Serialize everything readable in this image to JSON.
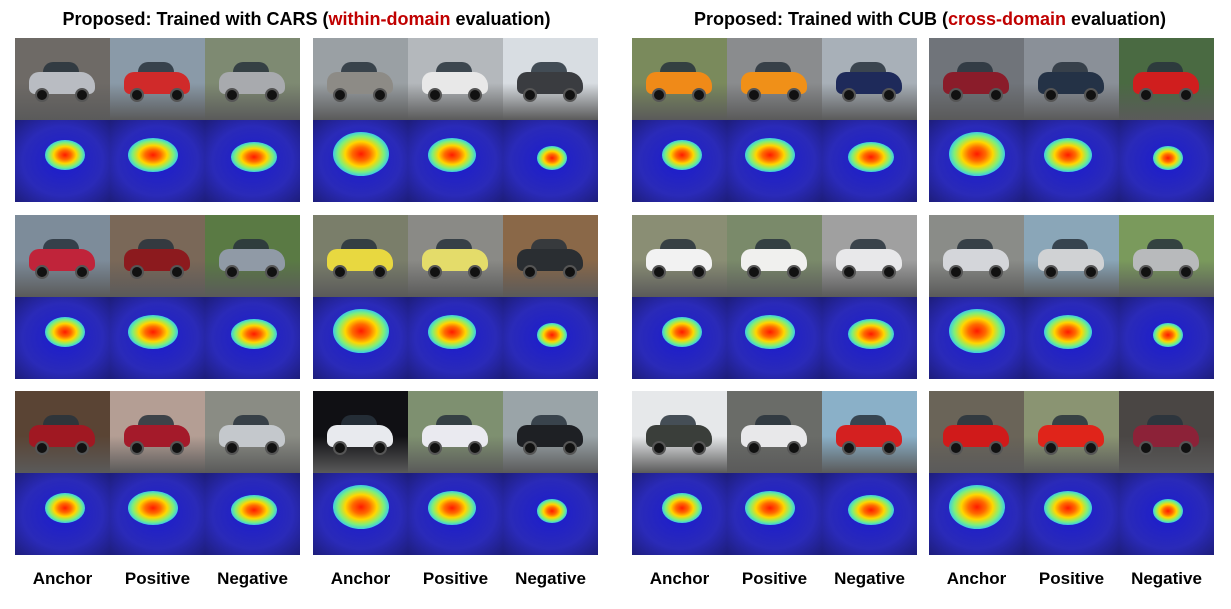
{
  "panels": [
    {
      "title_prefix": "Proposed: Trained with CARS (",
      "title_highlight": "within-domain",
      "title_suffix": " evaluation)",
      "highlight_color": "#c00000"
    },
    {
      "title_prefix": "Proposed: Trained with CUB (",
      "title_highlight": "cross-domain",
      "title_suffix": " evaluation)",
      "highlight_color": "#c00000"
    }
  ],
  "column_labels": [
    "Anchor",
    "Positive",
    "Negative"
  ],
  "groups": [
    {
      "panel": 0,
      "row": 0,
      "col": 0,
      "photos": [
        {
          "car": "#b9bcc2",
          "bg": "#6e6a66"
        },
        {
          "car": "#d02a2a",
          "bg": "#8a9aa8"
        },
        {
          "car": "#a8aaae",
          "bg": "#7e8a72"
        }
      ]
    },
    {
      "panel": 0,
      "row": 0,
      "col": 1,
      "photos": [
        {
          "car": "#8d8b86",
          "bg": "#9aa0a4"
        },
        {
          "car": "#e8e8e8",
          "bg": "#b4b8bc"
        },
        {
          "car": "#3a3c40",
          "bg": "#d8dde2"
        }
      ]
    },
    {
      "panel": 0,
      "row": 1,
      "col": 0,
      "photos": [
        {
          "car": "#c0243a",
          "bg": "#7d8c9a"
        },
        {
          "car": "#8c1a1e",
          "bg": "#7a6858"
        },
        {
          "car": "#909aa6",
          "bg": "#5a7a44"
        }
      ]
    },
    {
      "panel": 0,
      "row": 1,
      "col": 1,
      "photos": [
        {
          "car": "#e8d840",
          "bg": "#7a7e6a"
        },
        {
          "car": "#e4dc6a",
          "bg": "#8a8a86"
        },
        {
          "car": "#2a2e32",
          "bg": "#8a6848"
        }
      ]
    },
    {
      "panel": 0,
      "row": 2,
      "col": 0,
      "photos": [
        {
          "car": "#a01822",
          "bg": "#5a4434"
        },
        {
          "car": "#a41a2a",
          "bg": "#b49e94"
        },
        {
          "car": "#c4c8cc",
          "bg": "#8a8c84"
        }
      ]
    },
    {
      "panel": 0,
      "row": 2,
      "col": 1,
      "photos": [
        {
          "car": "#e8eaee",
          "bg": "#101014"
        },
        {
          "car": "#eaeaf0",
          "bg": "#7e9070"
        },
        {
          "car": "#1e2024",
          "bg": "#9aa4a8"
        }
      ]
    },
    {
      "panel": 1,
      "row": 0,
      "col": 0,
      "photos": [
        {
          "car": "#f08a18",
          "bg": "#7a8a5c"
        },
        {
          "car": "#f09018",
          "bg": "#8a8c8e"
        },
        {
          "car": "#1e2a5a",
          "bg": "#a8b0b8"
        }
      ]
    },
    {
      "panel": 1,
      "row": 0,
      "col": 1,
      "photos": [
        {
          "car": "#8a1c2a",
          "bg": "#70747a"
        },
        {
          "car": "#243246",
          "bg": "#8a9098"
        },
        {
          "car": "#d01e1e",
          "bg": "#4a6a42"
        }
      ]
    },
    {
      "panel": 1,
      "row": 1,
      "col": 0,
      "photos": [
        {
          "car": "#f2f2f2",
          "bg": "#8a8e74"
        },
        {
          "car": "#f0f0ee",
          "bg": "#7a8a6a"
        },
        {
          "car": "#e8e8ea",
          "bg": "#a0a0a0"
        }
      ]
    },
    {
      "panel": 1,
      "row": 1,
      "col": 1,
      "photos": [
        {
          "car": "#d4d6da",
          "bg": "#8a8c88"
        },
        {
          "car": "#d0d2d4",
          "bg": "#8aa6b8"
        },
        {
          "car": "#b8babc",
          "bg": "#7a9a5c"
        }
      ]
    },
    {
      "panel": 1,
      "row": 2,
      "col": 0,
      "photos": [
        {
          "car": "#3a3e3a",
          "bg": "#e6e8ea"
        },
        {
          "car": "#e8e8ea",
          "bg": "#6a6c68"
        },
        {
          "car": "#d42020",
          "bg": "#8ab0c8"
        }
      ]
    },
    {
      "panel": 1,
      "row": 2,
      "col": 1,
      "photos": [
        {
          "car": "#d01a1a",
          "bg": "#6a6458"
        },
        {
          "car": "#e0241a",
          "bg": "#8a9472"
        },
        {
          "car": "#8c2238",
          "bg": "#4a4644"
        }
      ]
    }
  ]
}
